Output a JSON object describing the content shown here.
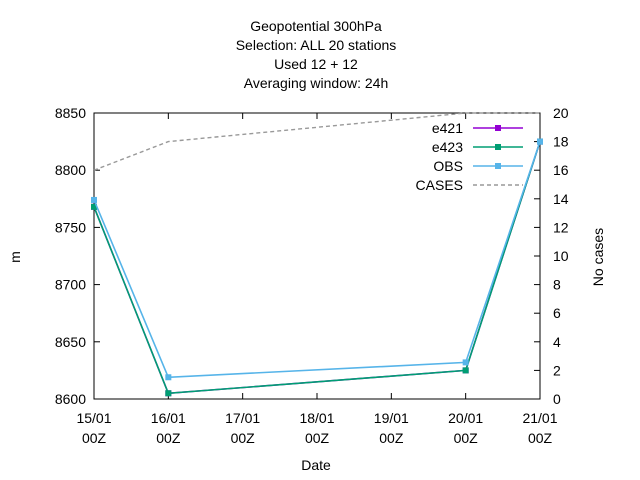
{
  "chart_data": {
    "type": "line",
    "title_lines": [
      "Geopotential 300hPa",
      "Selection: ALL     20 stations",
      "Used  12  + 12",
      "Averaging window: 24h"
    ],
    "xlabel": "Date",
    "ylabel": "m",
    "y2label": "No cases",
    "x_ticks": [
      {
        "day": 0,
        "line1": "15/01",
        "line2": "00Z"
      },
      {
        "day": 1,
        "line1": "16/01",
        "line2": "00Z"
      },
      {
        "day": 2,
        "line1": "17/01",
        "line2": "00Z"
      },
      {
        "day": 3,
        "line1": "18/01",
        "line2": "00Z"
      },
      {
        "day": 4,
        "line1": "19/01",
        "line2": "00Z"
      },
      {
        "day": 5,
        "line1": "20/01",
        "line2": "00Z"
      },
      {
        "day": 6,
        "line1": "21/01",
        "line2": "00Z"
      }
    ],
    "xlim": [
      0,
      6
    ],
    "ylim": [
      8600,
      8850
    ],
    "yticks": [
      8600,
      8650,
      8700,
      8750,
      8800,
      8850
    ],
    "y2lim": [
      0,
      20
    ],
    "y2ticks": [
      0,
      2,
      4,
      6,
      8,
      10,
      12,
      14,
      16,
      18,
      20
    ],
    "grid": false,
    "legend_position": "top-right",
    "series": [
      {
        "name": "e421",
        "axis": "y",
        "color": "#9400d3",
        "style": "solid",
        "marker": "square",
        "x": [
          0,
          1,
          5,
          6
        ],
        "values": [
          8768,
          8605,
          8625,
          8825
        ]
      },
      {
        "name": "e423",
        "axis": "y",
        "color": "#009e73",
        "style": "solid",
        "marker": "square",
        "x": [
          0,
          1,
          5,
          6
        ],
        "values": [
          8768,
          8605,
          8625,
          8825
        ]
      },
      {
        "name": "OBS",
        "axis": "y",
        "color": "#56b4e9",
        "style": "solid",
        "marker": "square",
        "x": [
          0,
          1,
          5,
          6
        ],
        "values": [
          8774,
          8619,
          8632,
          8825
        ]
      },
      {
        "name": "CASES",
        "axis": "y2",
        "color": "#999999",
        "style": "dashed",
        "marker": "none",
        "x": [
          0,
          1,
          2,
          3,
          4,
          5,
          6
        ],
        "values": [
          16,
          18,
          18.5,
          19,
          19.5,
          20,
          20
        ]
      }
    ]
  }
}
